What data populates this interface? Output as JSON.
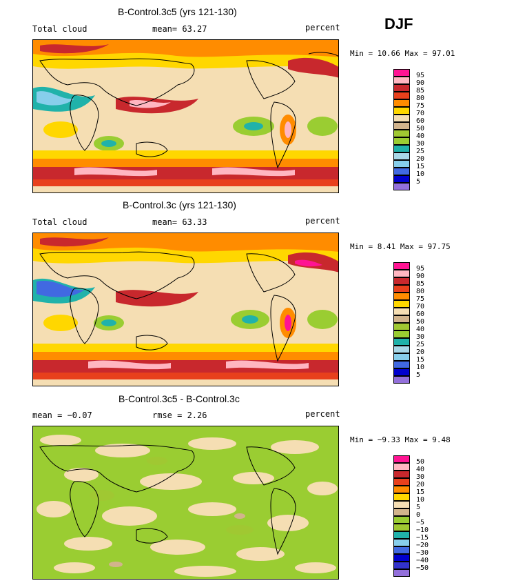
{
  "season": "DJF",
  "panels": [
    {
      "title": "B-Control.3c5 (yrs 121-130)",
      "left_label": "Total cloud",
      "center_label": "mean=  63.27",
      "units": "percent",
      "minmax": "Min =  10.66 Max =  97.01"
    },
    {
      "title": "B-Control.3c (yrs 121-130)",
      "left_label": "Total cloud",
      "center_label": "mean=  63.33",
      "units": "percent",
      "minmax": "Min =   8.41 Max =  97.75"
    },
    {
      "title": "B-Control.3c5 - B-Control.3c",
      "left_label": "mean =  −0.07",
      "center_label": "rmse =   2.26",
      "units": "percent",
      "minmax": "Min =  −9.33 Max =   9.48"
    }
  ],
  "legend_abs": {
    "labels": [
      "95",
      "90",
      "85",
      "80",
      "75",
      "70",
      "60",
      "50",
      "40",
      "30",
      "25",
      "20",
      "15",
      "10",
      "5"
    ],
    "colors": [
      "#ff1493",
      "#ffb6c1",
      "#c8282d",
      "#e8401c",
      "#ff8c00",
      "#ffd700",
      "#f5deb3",
      "#d2b48c",
      "#a0c832",
      "#9acd32",
      "#20b2aa",
      "#a8d8e8",
      "#87ceeb",
      "#4169e1",
      "#0000cd",
      "#9370db"
    ]
  },
  "legend_diff": {
    "labels": [
      "50",
      "40",
      "30",
      "20",
      "15",
      "10",
      "5",
      "0",
      "−5",
      "−10",
      "−15",
      "−20",
      "−30",
      "−40",
      "−50"
    ],
    "colors": [
      "#ff1493",
      "#ffb6c1",
      "#c8282d",
      "#e8401c",
      "#ff8c00",
      "#ffd700",
      "#f5deb3",
      "#d2b48c",
      "#9acd32",
      "#a0c832",
      "#20b2aa",
      "#87ceeb",
      "#4169e1",
      "#0000cd",
      "#3333cc",
      "#9370db"
    ]
  }
}
